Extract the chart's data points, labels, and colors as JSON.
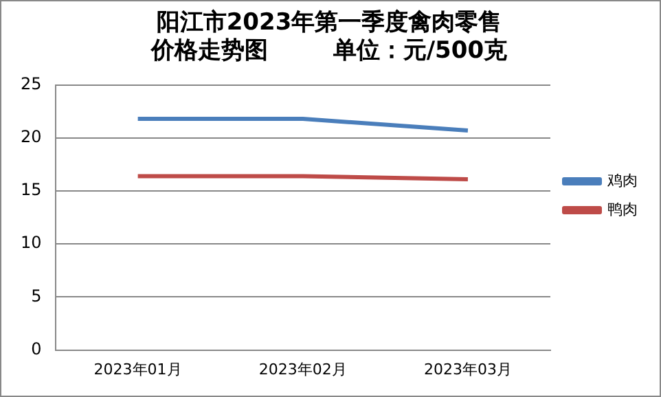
{
  "chart_data": {
    "type": "line",
    "title": "阳江市2023年第一季度禽肉零售价格走势图        单位：元/500克",
    "categories": [
      "2023年01月",
      "2023年02月",
      "2023年03月"
    ],
    "series": [
      {
        "name": "鸡肉",
        "color": "#4a7ebb",
        "values": [
          21.8,
          21.8,
          20.7
        ]
      },
      {
        "name": "鸭肉",
        "color": "#be4b48",
        "values": [
          16.4,
          16.4,
          16.1
        ]
      }
    ],
    "ylim": [
      0,
      25
    ],
    "yticks": [
      0,
      5,
      10,
      15,
      20,
      25
    ],
    "grid": "y",
    "legend": "right",
    "marker": "none",
    "line_style": "solid"
  }
}
